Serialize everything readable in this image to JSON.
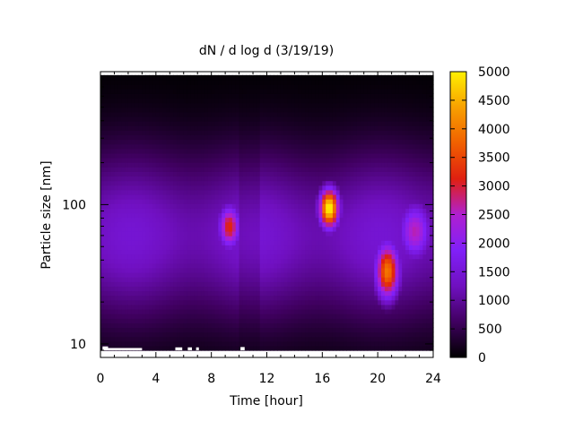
{
  "chart_data": {
    "type": "heatmap",
    "title": "dN / d log d (3/19/19)",
    "xlabel": "Time [hour]",
    "ylabel": "Particle size [nm]",
    "x_range": [
      0,
      24
    ],
    "y_range_nm": [
      8,
      900
    ],
    "y_scale": "log",
    "x_ticks": [
      "0",
      "4",
      "8",
      "12",
      "16",
      "20",
      "24"
    ],
    "x_tick_values": [
      0,
      4,
      8,
      12,
      16,
      20,
      24
    ],
    "y_ticks": [
      "10",
      "100"
    ],
    "y_tick_values": [
      10,
      100
    ],
    "colorbar": {
      "range": [
        0,
        5000
      ],
      "ticks": [
        "0",
        "500",
        "1000",
        "1500",
        "2000",
        "2500",
        "3000",
        "3500",
        "4000",
        "4500",
        "5000"
      ],
      "tick_values": [
        0,
        500,
        1000,
        1500,
        2000,
        2500,
        3000,
        3500,
        4000,
        4500,
        5000
      ],
      "palette": [
        "#000000",
        "#400060",
        "#7010c0",
        "#8020f8",
        "#b020d0",
        "#e02010",
        "#f06000",
        "#f8a000",
        "#fff000"
      ]
    },
    "data_extent": {
      "time_hours": [
        0,
        24
      ],
      "size_nm": [
        9,
        850
      ]
    },
    "features": [
      {
        "name": "background_band",
        "peak_size_nm": 60,
        "value": 1300
      },
      {
        "name": "event_1",
        "time_hours": 9.3,
        "size_nm": 70,
        "peak_value": 2700
      },
      {
        "name": "event_2",
        "time_hours": 16.5,
        "size_nm": 95,
        "peak_value": 4700
      },
      {
        "name": "event_3",
        "time_hours": 20.7,
        "size_nm": 33,
        "peak_value": 3500
      },
      {
        "name": "event_4",
        "time_hours": 22.7,
        "size_nm": 65,
        "peak_value": 2100
      }
    ]
  }
}
